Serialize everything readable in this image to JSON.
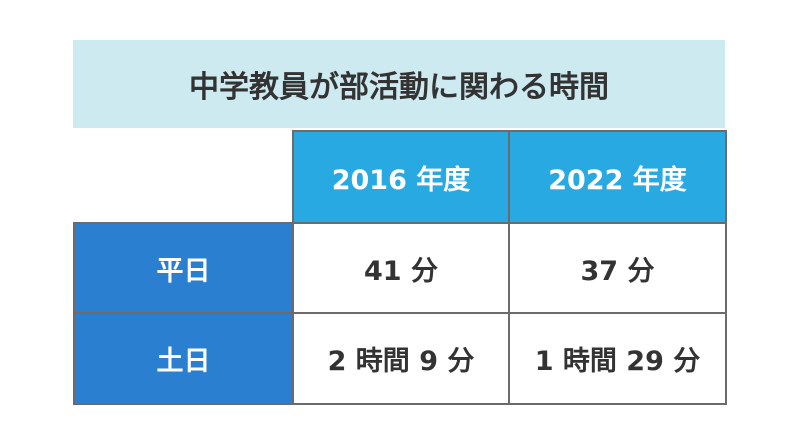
{
  "title": "中学教員が部活動に関わる時間",
  "table": {
    "columns": [
      "2016 年度",
      "2022 年度"
    ],
    "rows": [
      [
        "平日",
        "41 分",
        "37 分"
      ],
      [
        "土日",
        "2 時間 9 分",
        "1 時間 29 分"
      ]
    ]
  }
}
